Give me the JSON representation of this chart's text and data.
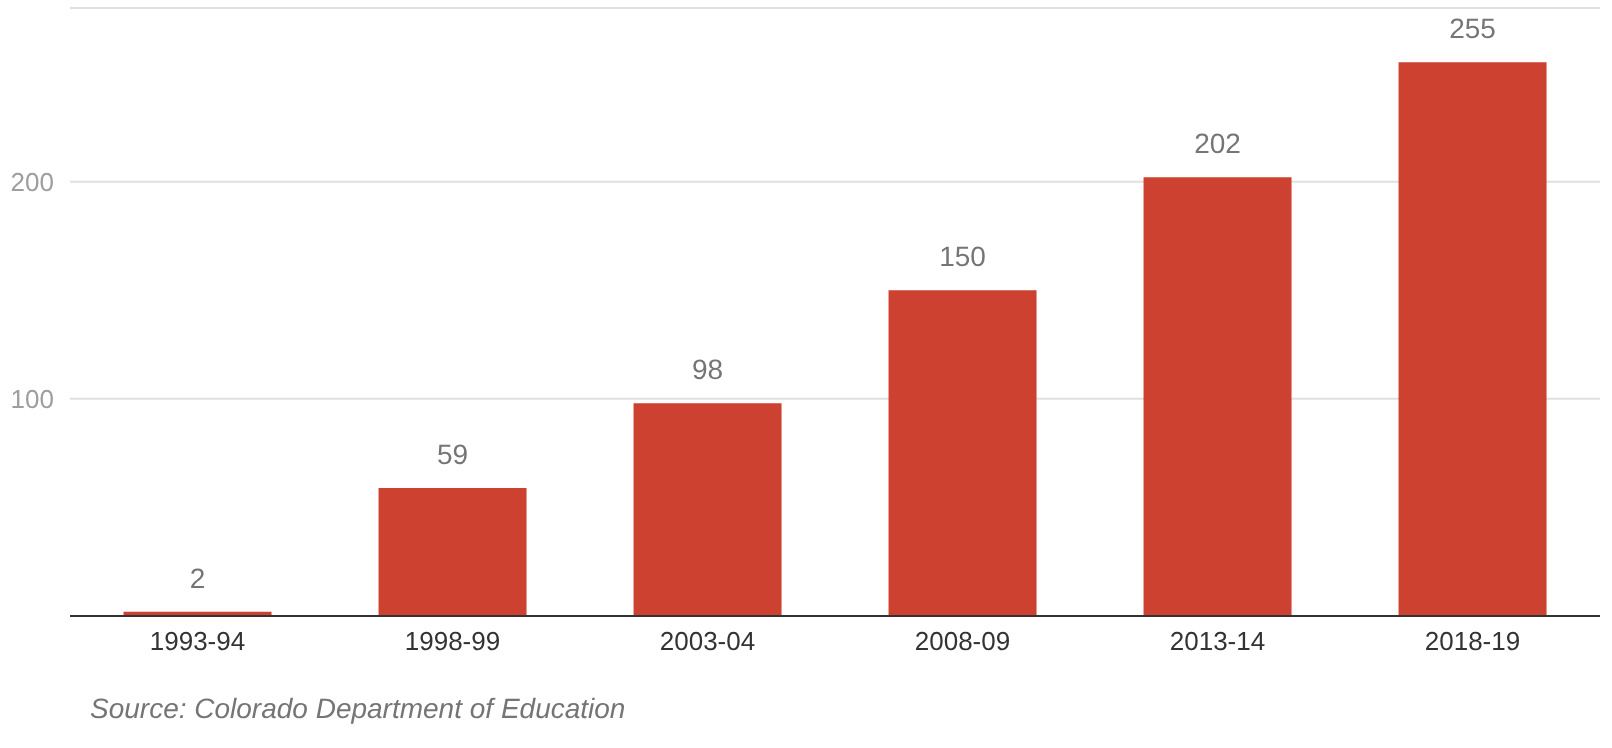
{
  "chart_data": {
    "type": "bar",
    "categories": [
      "1993-94",
      "1998-99",
      "2003-04",
      "2008-09",
      "2013-14",
      "2018-19"
    ],
    "values": [
      2,
      59,
      98,
      150,
      202,
      255
    ],
    "color": "#cc4130",
    "ylim": [
      0,
      280
    ],
    "yticks": [
      {
        "value": 0,
        "label": null
      },
      100,
      200
    ],
    "grid": "y",
    "data_labels": true,
    "annotations": [
      "Source: Colorado Department of Education"
    ]
  }
}
